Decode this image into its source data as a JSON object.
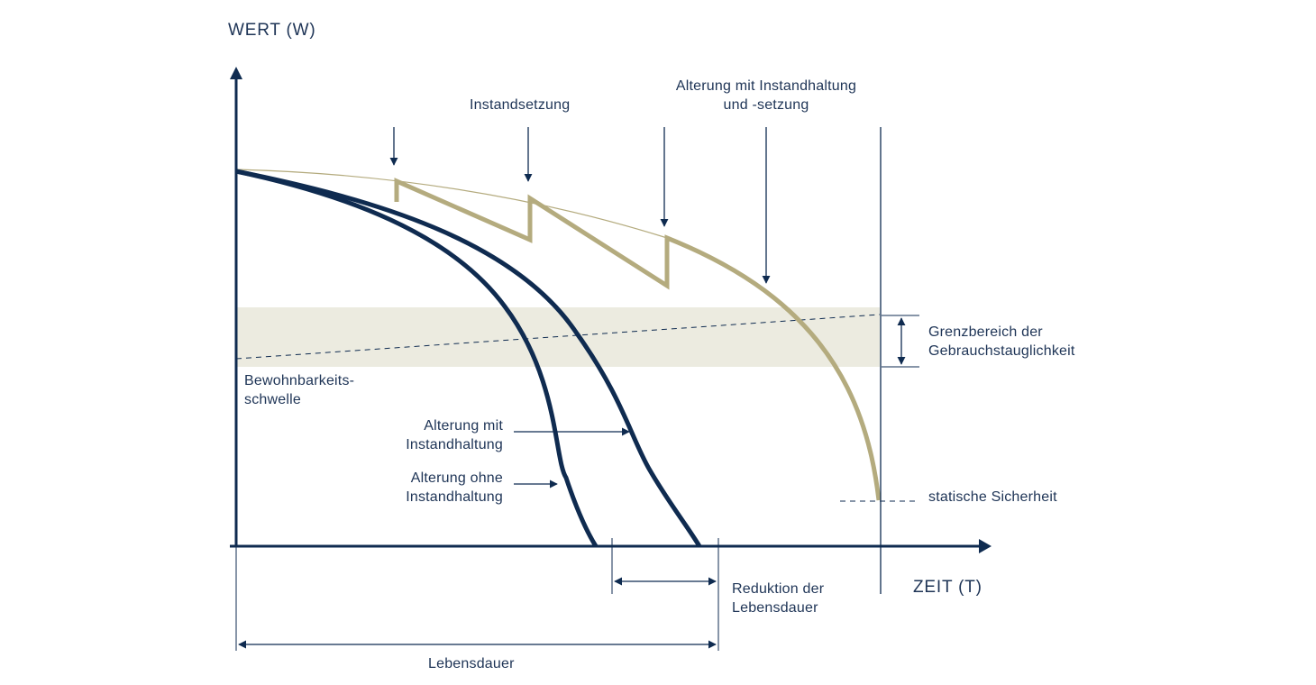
{
  "axes": {
    "y_label": "WERT (W)",
    "x_label": "ZEIT (T)"
  },
  "annotations": {
    "instandsetzung": "Instandsetzung",
    "alterung_mit_instandhaltung_und_setzung": [
      "Alterung mit Instandhaltung",
      "und -setzung"
    ],
    "grenzbereich": [
      "Grenzbereich der",
      "Gebrauchstauglichkeit"
    ],
    "bewohnbarkeitsschwelle": [
      "Bewohnbarkeits-",
      "schwelle"
    ],
    "alterung_mit_instandhaltung": [
      "Alterung mit",
      "Instandhaltung"
    ],
    "alterung_ohne_instandhaltung": [
      "Alterung ohne",
      "Instandhaltung"
    ],
    "statische_sicherheit": "statische Sicherheit",
    "reduktion_der_lebensdauer": [
      "Reduktion der",
      "Lebensdauer"
    ],
    "lebensdauer": "Lebensdauer"
  },
  "colors": {
    "navy": "#0f2b50",
    "gold": "#b4ab7e",
    "band": "#ecebe0",
    "text": "#1e3456"
  }
}
